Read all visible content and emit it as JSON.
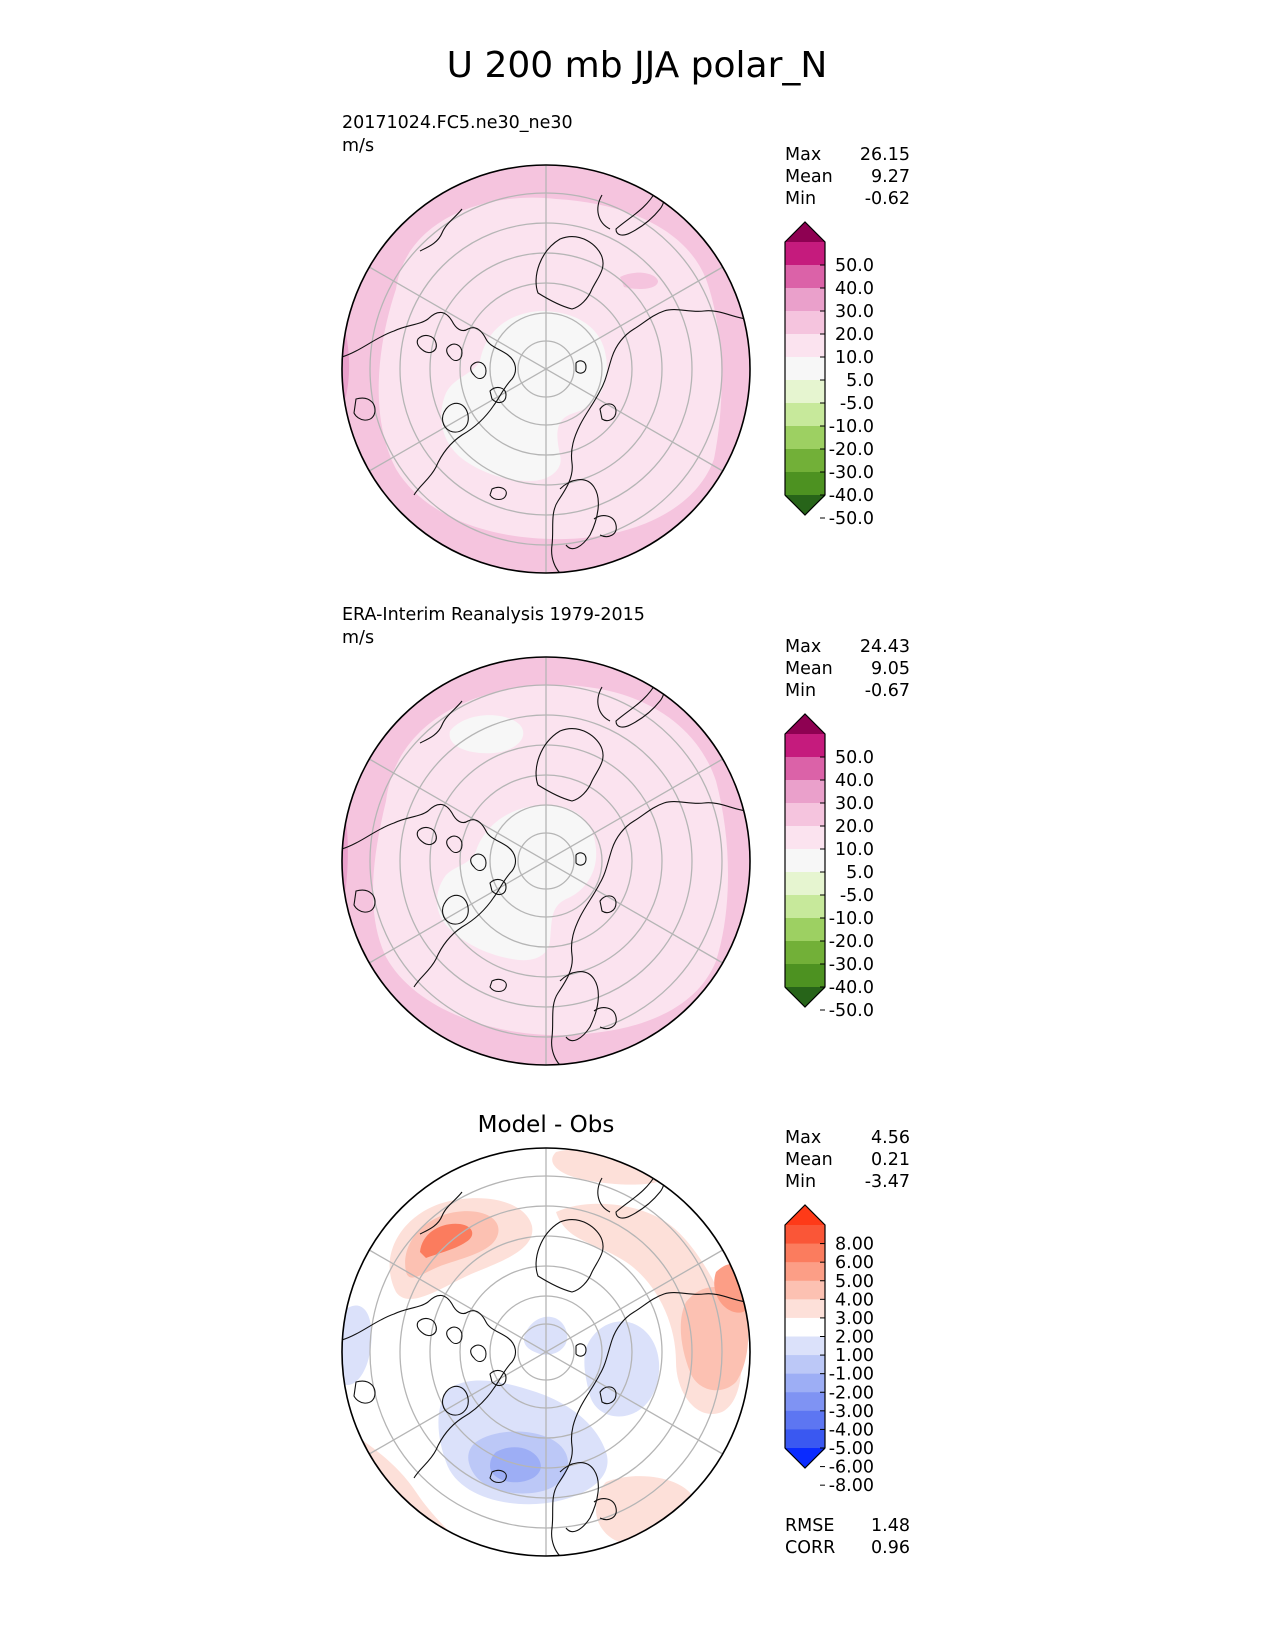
{
  "title": "U 200 mb JJA polar_N",
  "colors": {
    "pink": [
      "#f7f7f7",
      "#fbe3ef",
      "#f5c4de",
      "#eaa0cb",
      "#db62a8",
      "#c51b7d",
      "#8e0152"
    ],
    "green": [
      "#e6f5d0",
      "#c7e99b",
      "#9dd062",
      "#72b038",
      "#4d9221",
      "#276419"
    ],
    "red": [
      "#ffffff",
      "#fde0d9",
      "#fcc1b2",
      "#fc9e86",
      "#fb7c5e",
      "#fa5637",
      "#fe3a18"
    ],
    "blue": [
      "#dbe1fa",
      "#bcc8f7",
      "#9daef5",
      "#7f93f3",
      "#5d76f2",
      "#3a58f1",
      "#0a2bff"
    ]
  },
  "panels": [
    {
      "title_line1": "20171024.FC5.ne30_ne30",
      "title_line2": "m/s",
      "stats": [
        {
          "label": "Max",
          "value": "26.15"
        },
        {
          "label": "Mean",
          "value": "9.27"
        },
        {
          "label": "Min",
          "value": "-0.62"
        }
      ],
      "colorbar_ticks": [
        "50.0",
        "40.0",
        "30.0",
        "20.0",
        "10.0",
        "5.0",
        "-5.0",
        "-10.0",
        "-20.0",
        "-30.0",
        "-40.0",
        "-50.0"
      ]
    },
    {
      "title_line1": "ERA-Interim Reanalysis 1979-2015",
      "title_line2": "m/s",
      "stats": [
        {
          "label": "Max",
          "value": "24.43"
        },
        {
          "label": "Mean",
          "value": "9.05"
        },
        {
          "label": "Min",
          "value": "-0.67"
        }
      ],
      "colorbar_ticks": [
        "50.0",
        "40.0",
        "30.0",
        "20.0",
        "10.0",
        "5.0",
        "-5.0",
        "-10.0",
        "-20.0",
        "-30.0",
        "-40.0",
        "-50.0"
      ]
    },
    {
      "title_line1": "Model - Obs",
      "stats": [
        {
          "label": "Max",
          "value": "4.56"
        },
        {
          "label": "Mean",
          "value": "0.21"
        },
        {
          "label": "Min",
          "value": "-3.47"
        }
      ],
      "colorbar_ticks": [
        "8.00",
        "6.00",
        "5.00",
        "4.00",
        "3.00",
        "2.00",
        "1.00",
        "-1.00",
        "-2.00",
        "-3.00",
        "-4.00",
        "-5.00",
        "-6.00",
        "-8.00"
      ],
      "metrics": [
        {
          "label": "RMSE",
          "value": "1.48"
        },
        {
          "label": "CORR",
          "value": "0.96"
        }
      ]
    }
  ],
  "chart_data": [
    {
      "type": "heatmap",
      "projection": "north polar stereographic",
      "title": "20171024.FC5.ne30_ne30",
      "units": "m/s",
      "levels": [
        -50,
        -40,
        -30,
        -20,
        -10,
        -5,
        5,
        10,
        20,
        30,
        40,
        50
      ],
      "max": 26.15,
      "mean": 9.27,
      "min": -0.62
    },
    {
      "type": "heatmap",
      "projection": "north polar stereographic",
      "title": "ERA-Interim Reanalysis 1979-2015",
      "units": "m/s",
      "levels": [
        -50,
        -40,
        -30,
        -20,
        -10,
        -5,
        5,
        10,
        20,
        30,
        40,
        50
      ],
      "max": 24.43,
      "mean": 9.05,
      "min": -0.67
    },
    {
      "type": "heatmap",
      "projection": "north polar stereographic",
      "title": "Model - Obs",
      "levels": [
        -8,
        -6,
        -5,
        -4,
        -3,
        -2,
        -1,
        1,
        2,
        3,
        4,
        5,
        6,
        8
      ],
      "max": 4.56,
      "mean": 0.21,
      "min": -3.47,
      "rmse": 1.48,
      "corr": 0.96
    }
  ]
}
